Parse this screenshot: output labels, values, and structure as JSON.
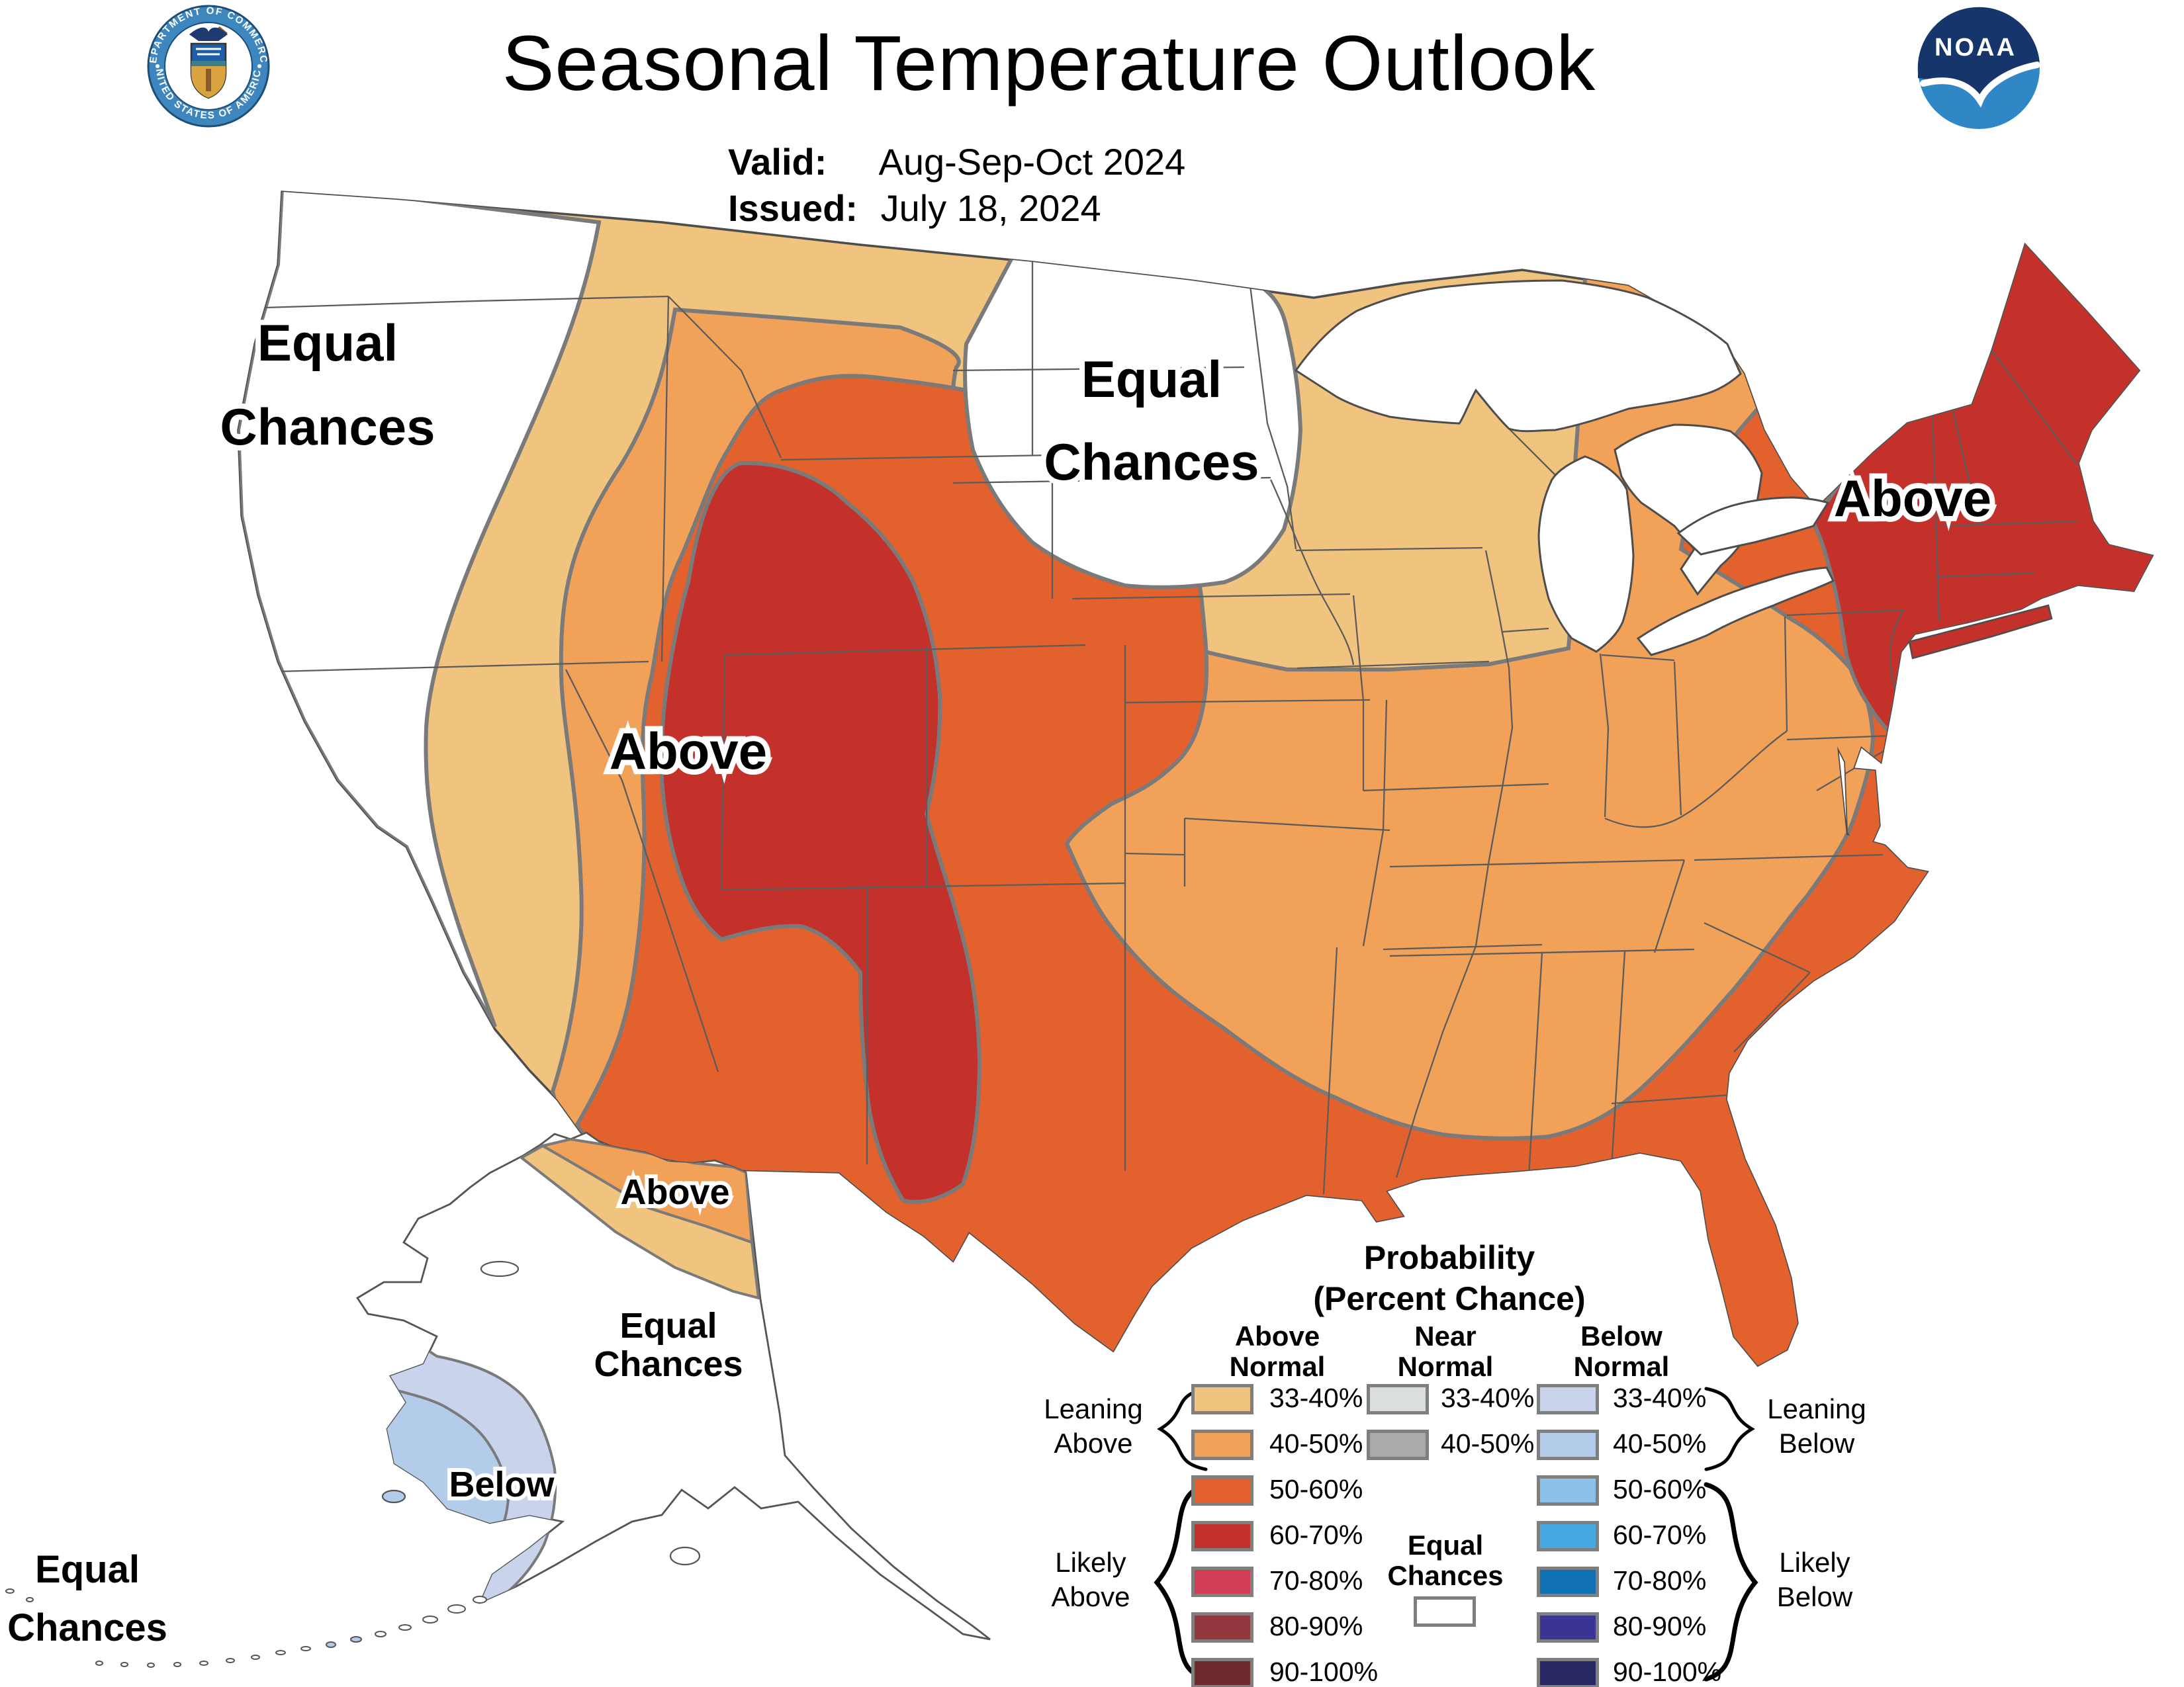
{
  "header": {
    "title": "Seasonal Temperature Outlook",
    "valid_label": "Valid:",
    "valid_value": "Aug-Sep-Oct 2024",
    "issued_label": "Issued:",
    "issued_value": "July 18, 2024"
  },
  "logos": {
    "commerce_seal": {
      "ring_text_top": "DEPARTMENT OF COMMERCE",
      "ring_text_bottom": "UNITED STATES OF AMERICA"
    },
    "noaa": {
      "text": "NOAA"
    }
  },
  "map_labels": {
    "nw_equal": {
      "line1": "Equal",
      "line2": "Chances"
    },
    "midwest_equal": {
      "line1": "Equal",
      "line2": "Chances"
    },
    "northeast_above": {
      "line1": "Above"
    },
    "west_above": {
      "line1": "Above"
    },
    "alaska_above": {
      "line1": "Above"
    },
    "alaska_equal": {
      "line1": "Equal",
      "line2": "Chances"
    },
    "alaska_below": {
      "line1": "Below"
    },
    "aleutian_equal": {
      "line1": "Equal",
      "line2": "Chances"
    }
  },
  "legend": {
    "title_line1": "Probability",
    "title_line2": "(Percent Chance)",
    "col_above": [
      "Above",
      "Normal"
    ],
    "col_near": [
      "Near",
      "Normal"
    ],
    "col_below": [
      "Below",
      "Normal"
    ],
    "rows": [
      {
        "range": "33-40%",
        "above": "#F0C47E",
        "near": "#DBDEDE",
        "below": "#CAD3EC"
      },
      {
        "range": "40-50%",
        "above": "#F2A159",
        "near": "#A9ABAB",
        "below": "#B3CCEA"
      },
      {
        "range": "50-60%",
        "above": "#E2612D",
        "near": null,
        "below": "#8CC1EA"
      },
      {
        "range": "60-70%",
        "above": "#C4302A",
        "near": null,
        "below": "#47A9E3"
      },
      {
        "range": "70-80%",
        "above": "#D23E56",
        "near": null,
        "below": "#0F70B4"
      },
      {
        "range": "80-90%",
        "above": "#93383E",
        "near": null,
        "below": "#3A3494"
      },
      {
        "range": "90-100%",
        "above": "#6F2A2D",
        "near": null,
        "below": "#282864"
      }
    ],
    "equal_chances_line1": "Equal",
    "equal_chances_line2": "Chances",
    "equal_chances_color": "#FFFFFF",
    "leaning_above": [
      "Leaning",
      "Above"
    ],
    "likely_above": [
      "Likely",
      "Above"
    ],
    "leaning_below": [
      "Leaning",
      "Below"
    ],
    "likely_below": [
      "Likely",
      "Below"
    ]
  },
  "band_colors": {
    "above_33_40": "#F0C47E",
    "above_40_50": "#F2A159",
    "above_50_60": "#E2612D",
    "above_60_70": "#C4302A",
    "below_33_40": "#CAD3EC",
    "below_40_50": "#B3CCEA",
    "equal_chances": "#FFFFFF",
    "contour_line": "#7A7A7A",
    "state_line": "#5C5C5C",
    "coast_line": "#4D4D4D"
  }
}
